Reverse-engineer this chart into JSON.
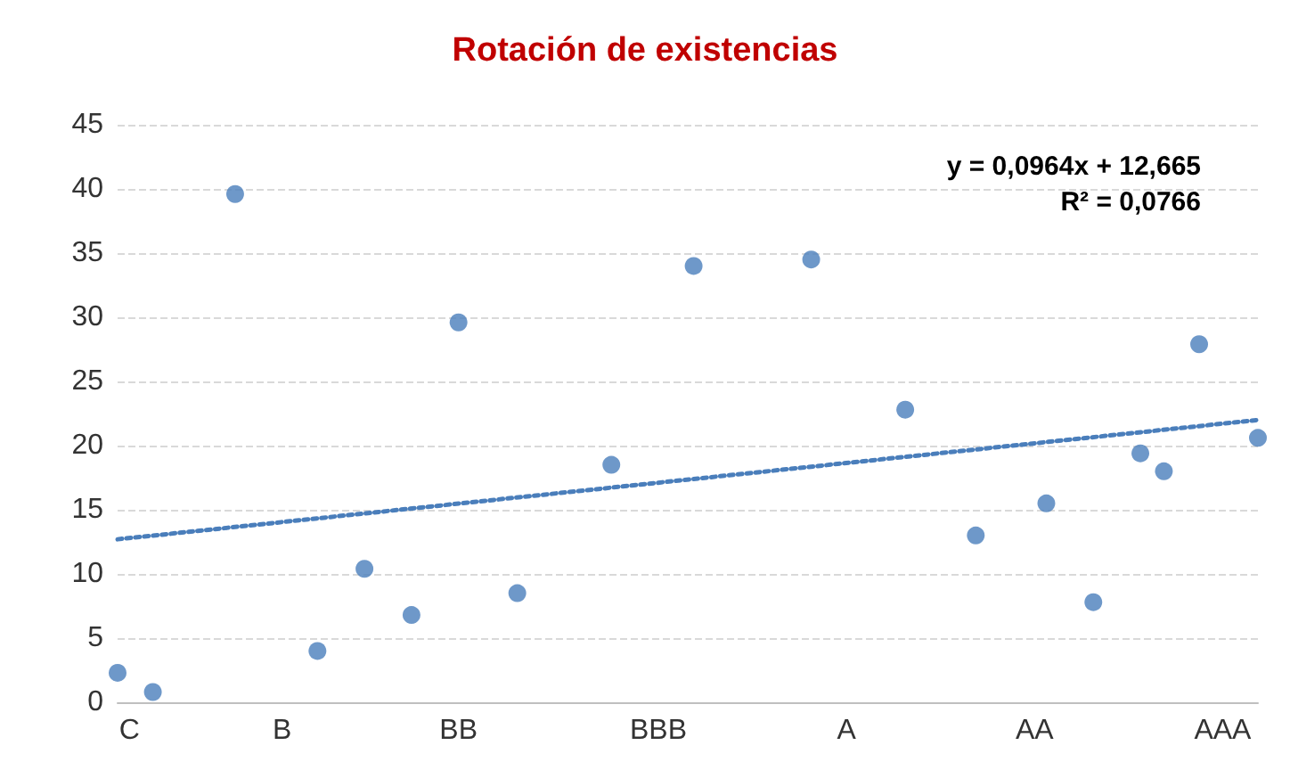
{
  "chart_data": {
    "type": "scatter",
    "title": "Rotación de existencias",
    "annotations": [
      "y = 0,0964x + 12,665",
      "R² = 0,0766"
    ],
    "categories": [
      null,
      "C",
      null,
      null,
      null,
      null,
      null,
      null,
      null,
      null,
      null,
      null,
      null,
      null,
      "B",
      null,
      null,
      null,
      null,
      null,
      null,
      null,
      null,
      null,
      null,
      null,
      null,
      null,
      null,
      "BB",
      null,
      null,
      null,
      null,
      null,
      null,
      null,
      null,
      null,
      null,
      null,
      null,
      null,
      null,
      null,
      null,
      "BBB",
      null,
      null,
      null,
      null,
      null,
      null,
      null,
      null,
      null,
      null,
      null,
      null,
      null,
      null,
      null,
      "A",
      null,
      null,
      null,
      null,
      null,
      null,
      null,
      null,
      null,
      null,
      null,
      null,
      null,
      null,
      null,
      "AA",
      null,
      null,
      null,
      null,
      null,
      null,
      null,
      null,
      null,
      null,
      null,
      null,
      null,
      null,
      null,
      "AAA",
      null,
      null,
      null
    ],
    "series": [
      {
        "color": "#4a7ebb",
        "values": [
          2.3,
          null,
          null,
          0.8,
          null,
          null,
          null,
          null,
          null,
          null,
          39.6,
          null,
          null,
          null,
          null,
          null,
          null,
          4.0,
          null,
          null,
          null,
          10.4,
          null,
          null,
          null,
          6.8,
          null,
          null,
          null,
          29.6,
          null,
          null,
          null,
          null,
          8.5,
          null,
          null,
          null,
          null,
          null,
          null,
          null,
          18.5,
          null,
          null,
          null,
          null,
          null,
          null,
          34.0,
          null,
          null,
          null,
          null,
          null,
          null,
          null,
          null,
          null,
          34.5,
          null,
          null,
          null,
          null,
          null,
          null,
          null,
          22.8,
          null,
          null,
          null,
          null,
          null,
          13.0,
          null,
          null,
          null,
          null,
          null,
          15.5,
          null,
          null,
          null,
          7.8,
          null,
          null,
          null,
          19.4,
          null,
          18.0,
          null,
          null,
          27.9,
          null,
          null,
          null,
          null,
          20.6
        ]
      },
      {
        "type": "line",
        "color": "#4a7ebb",
        "line_style": "dotted",
        "marker": "none",
        "values": [
          12.7,
          null,
          null,
          null,
          null,
          null,
          null,
          null,
          null,
          null,
          null,
          null,
          null,
          null,
          null,
          null,
          null,
          null,
          null,
          null,
          null,
          null,
          null,
          null,
          null,
          null,
          null,
          null,
          null,
          null,
          null,
          null,
          null,
          null,
          null,
          null,
          null,
          null,
          null,
          null,
          null,
          null,
          null,
          null,
          null,
          null,
          null,
          null,
          null,
          null,
          null,
          null,
          null,
          null,
          null,
          null,
          null,
          null,
          null,
          null,
          null,
          null,
          null,
          null,
          null,
          null,
          null,
          null,
          null,
          null,
          null,
          null,
          null,
          null,
          null,
          null,
          null,
          null,
          null,
          null,
          null,
          null,
          null,
          null,
          null,
          null,
          null,
          null,
          null,
          null,
          null,
          null,
          null,
          null,
          null,
          null,
          null,
          22.0
        ]
      }
    ],
    "ylim": [
      0,
      45
    ],
    "yticks": [
      0,
      5,
      10,
      15,
      20,
      25,
      30,
      35,
      40,
      45
    ],
    "grid": "y",
    "marker": "circle"
  }
}
